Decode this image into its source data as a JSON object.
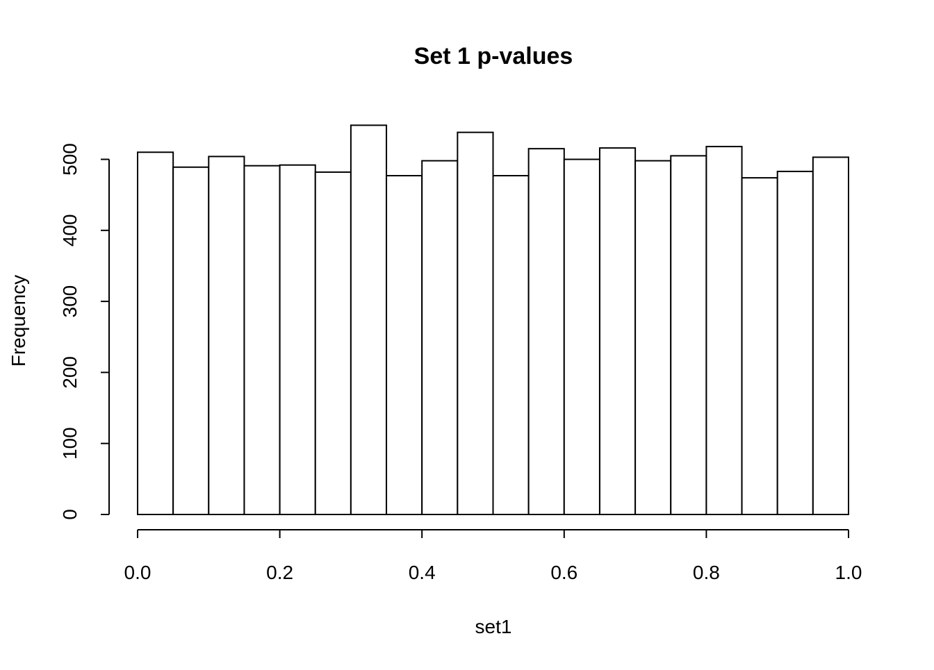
{
  "chart_data": {
    "type": "histogram",
    "title": "Set 1 p-values",
    "x_label": "set1",
    "y_label": "Frequency",
    "bins": [
      0,
      0.05,
      0.1,
      0.15,
      0.2,
      0.25,
      0.3,
      0.35,
      0.4,
      0.45,
      0.5,
      0.55,
      0.6,
      0.65,
      0.7,
      0.75,
      0.8,
      0.85,
      0.9,
      0.95,
      1
    ],
    "values": [
      510,
      489,
      504,
      491,
      492,
      482,
      548,
      477,
      498,
      538,
      477,
      515,
      500,
      516,
      498,
      505,
      518,
      474,
      483,
      503
    ],
    "color": "#ffffff",
    "xlim": [
      0,
      1
    ],
    "xticks": [
      {
        "value": 0,
        "label": "0.0"
      },
      0.2,
      0.4,
      0.6,
      0.8,
      {
        "value": 1,
        "label": "1.0"
      }
    ],
    "ylim": [
      0,
      570
    ],
    "yticks": [
      0,
      100,
      200,
      300,
      400,
      500
    ]
  }
}
